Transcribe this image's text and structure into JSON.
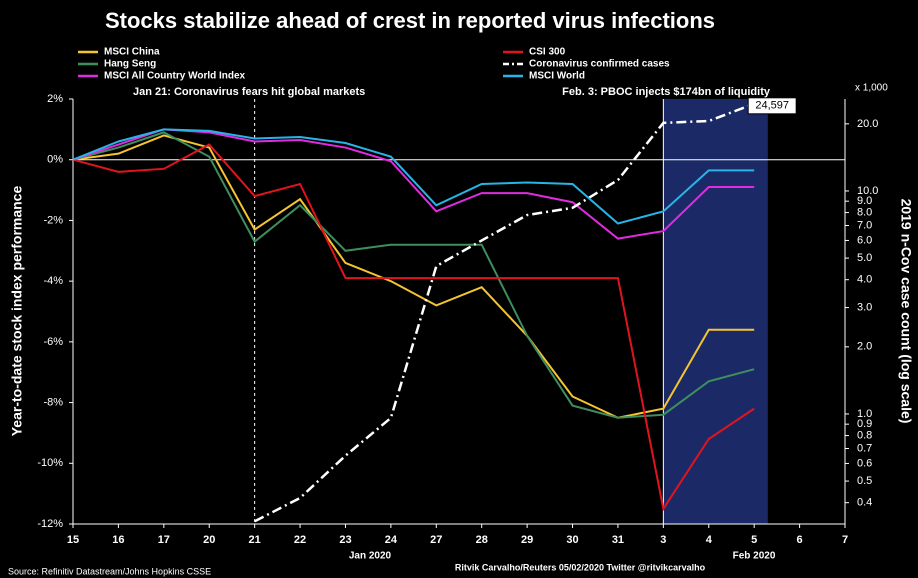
{
  "chart_data": {
    "type": "line",
    "title": "Stocks stabilize ahead of crest in reported virus infections",
    "y_label": "Year-to-date stock index performance",
    "y2_label": "2019 n-Cov case count (log scale)",
    "y2_unit": "x 1,000",
    "month_labels": [
      "Jan 2020",
      "Feb 2020"
    ],
    "annotations": [
      "Jan 21: Coronavirus fears hit global markets",
      "Feb. 3: PBOC injects $174bn of liquidity"
    ],
    "source": "Source: Refinitiv Datastream/Johns Hopkins CSSE",
    "credit": "Ritvik Carvalho/Reuters 05/02/2020 Twitter @ritvikcarvalho",
    "categories": [
      "15",
      "16",
      "17",
      "20",
      "21",
      "22",
      "23",
      "24",
      "27",
      "28",
      "29",
      "30",
      "31",
      "3",
      "4",
      "5",
      "6",
      "7"
    ],
    "ylim": [
      -12,
      2
    ],
    "yticks": [
      {
        "value": 2,
        "label": "2%"
      },
      {
        "value": 0,
        "label": "0%"
      },
      {
        "value": -2,
        "label": "-2%"
      },
      {
        "value": -4,
        "label": "-4%"
      },
      {
        "value": -6,
        "label": "-6%"
      },
      {
        "value": -8,
        "label": "-8%"
      },
      {
        "value": -10,
        "label": "-10%"
      },
      {
        "value": -12,
        "label": "-12%"
      }
    ],
    "y2lim": [
      0.321,
      25.85
    ],
    "y2scale": "log",
    "y2ticks": [
      0.4,
      0.5,
      0.6,
      0.7,
      0.8,
      0.9,
      {
        "value": 1,
        "label": "1.0"
      },
      {
        "value": 2,
        "label": "2.0"
      },
      {
        "value": 3,
        "label": "3.0"
      },
      {
        "value": 4,
        "label": "4.0"
      },
      {
        "value": 5,
        "label": "5.0"
      },
      {
        "value": 6,
        "label": "6.0"
      },
      {
        "value": 7,
        "label": "7.0"
      },
      {
        "value": 8,
        "label": "8.0"
      },
      {
        "value": 9,
        "label": "9.0"
      },
      {
        "value": 10,
        "label": "10.0"
      },
      {
        "value": 20,
        "label": "20.0"
      }
    ],
    "series": [
      {
        "name": "MSCI China",
        "color": "#f5c431",
        "values": [
          0,
          0.2,
          0.8,
          0.4,
          -2.3,
          -1.3,
          -3.4,
          -4.0,
          -4.8,
          -4.2,
          -5.8,
          -7.8,
          -8.5,
          -8.2,
          -5.6,
          -5.6,
          null,
          null
        ]
      },
      {
        "name": "Hang Seng",
        "color": "#3e8e5e",
        "values": [
          0,
          0.4,
          0.9,
          0.1,
          -2.7,
          -1.5,
          -3.0,
          -2.8,
          -2.8,
          -2.8,
          -5.8,
          -8.1,
          -8.5,
          -8.4,
          -7.3,
          -6.9,
          null,
          null
        ]
      },
      {
        "name": "MSCI All Country World Index",
        "color": "#e02be0",
        "values": [
          0,
          0.5,
          1.0,
          0.9,
          0.6,
          0.65,
          0.4,
          -0.05,
          -1.7,
          -1.1,
          -1.1,
          -1.4,
          -2.6,
          -2.35,
          -0.9,
          -0.9,
          null,
          null
        ]
      },
      {
        "name": "CSI 300",
        "color": "#e0141e",
        "values": [
          0,
          -0.4,
          -0.3,
          0.5,
          -1.2,
          -0.8,
          -3.9,
          -3.9,
          -3.9,
          -3.9,
          -3.9,
          -3.9,
          -3.9,
          -11.5,
          -9.2,
          -8.2,
          null,
          null
        ]
      },
      {
        "name": "Coronavirus confirmed cases",
        "color": "#ffffff",
        "axis": "y2",
        "dash": true,
        "values": [
          null,
          null,
          null,
          null,
          0.33,
          0.42,
          0.65,
          0.96,
          4.6,
          6.0,
          7.8,
          8.4,
          11.2,
          20.2,
          20.6,
          24.597,
          null,
          null
        ],
        "value_labels": [
          null,
          null,
          null,
          null,
          null,
          null,
          null,
          null,
          null,
          null,
          null,
          null,
          null,
          null,
          null,
          "24,597",
          null,
          null
        ]
      },
      {
        "name": "MSCI World",
        "color": "#27b5e8",
        "values": [
          0,
          0.6,
          1.0,
          0.95,
          0.7,
          0.75,
          0.55,
          0.1,
          -1.5,
          -0.8,
          -0.75,
          -0.8,
          -2.1,
          -1.7,
          -0.35,
          -0.35,
          null,
          null
        ]
      }
    ]
  }
}
